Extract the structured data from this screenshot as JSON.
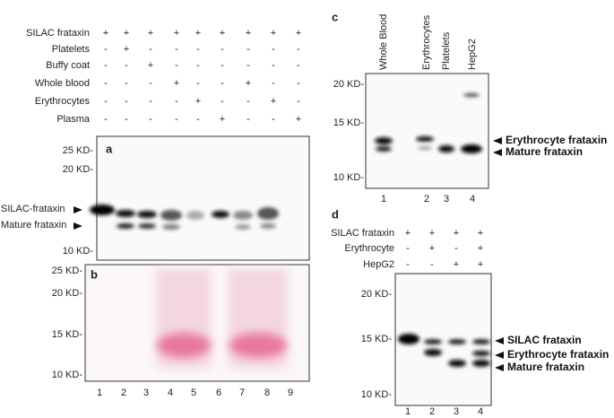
{
  "conditions": {
    "rows": [
      {
        "label": "SILAC frataxin",
        "signs": [
          "+",
          "+",
          "+",
          "+",
          "+",
          "+",
          "+",
          "+",
          "+"
        ]
      },
      {
        "label": "Platelets",
        "signs": [
          "-",
          "+",
          "-",
          "-",
          "-",
          "-",
          "-",
          "-",
          "-"
        ]
      },
      {
        "label": "Buffy coat",
        "signs": [
          "-",
          "-",
          "+",
          "-",
          "-",
          "-",
          "-",
          "-",
          "-"
        ]
      },
      {
        "label": "Whole blood",
        "signs": [
          "-",
          "-",
          "-",
          "+",
          "-",
          "-",
          "+",
          "-",
          "-"
        ]
      },
      {
        "label": "Erythrocytes",
        "signs": [
          "-",
          "-",
          "-",
          "-",
          "+",
          "-",
          "-",
          "+",
          "-"
        ]
      },
      {
        "label": "Plasma",
        "signs": [
          "-",
          "-",
          "-",
          "-",
          "-",
          "+",
          "-",
          "-",
          "+"
        ]
      }
    ]
  },
  "panel_a": {
    "label": "a",
    "markers": [
      "25 KD-",
      "20 KD-",
      "10 KD-"
    ],
    "band_labels": [
      "SILAC-frataxin",
      "Mature frataxin"
    ]
  },
  "panel_b": {
    "label": "b",
    "markers": [
      "25 KD-",
      "20 KD-",
      "15 KD-",
      "10 KD-"
    ],
    "lanes": [
      "1",
      "2",
      "3",
      "4",
      "5",
      "6",
      "7",
      "8",
      "9"
    ]
  },
  "panel_c": {
    "label": "c",
    "lane_labels": [
      "Whole Blood",
      "Erythrocytes",
      "Platelets",
      "HepG2"
    ],
    "markers": [
      "20 KD-",
      "15 KD-",
      "10 KD-"
    ],
    "band_labels": [
      "Erythrocyte frataxin",
      "Mature frataxin"
    ],
    "lanes": [
      "1",
      "2",
      "3",
      "4"
    ]
  },
  "panel_d": {
    "label": "d",
    "conditions": [
      {
        "label": "SILAC frataxin",
        "signs": [
          "+",
          "+",
          "+",
          "+"
        ]
      },
      {
        "label": "Erythrocyte",
        "signs": [
          "-",
          "+",
          "-",
          "+"
        ]
      },
      {
        "label": "HepG2",
        "signs": [
          "-",
          "-",
          "+",
          "+"
        ]
      }
    ],
    "markers": [
      "20 KD-",
      "15 KD-",
      "10 KD-"
    ],
    "band_labels": [
      "SILAC frataxin",
      "Erythrocyte frataxin",
      "Mature frataxin"
    ],
    "lanes": [
      "1",
      "2",
      "3",
      "4"
    ]
  }
}
